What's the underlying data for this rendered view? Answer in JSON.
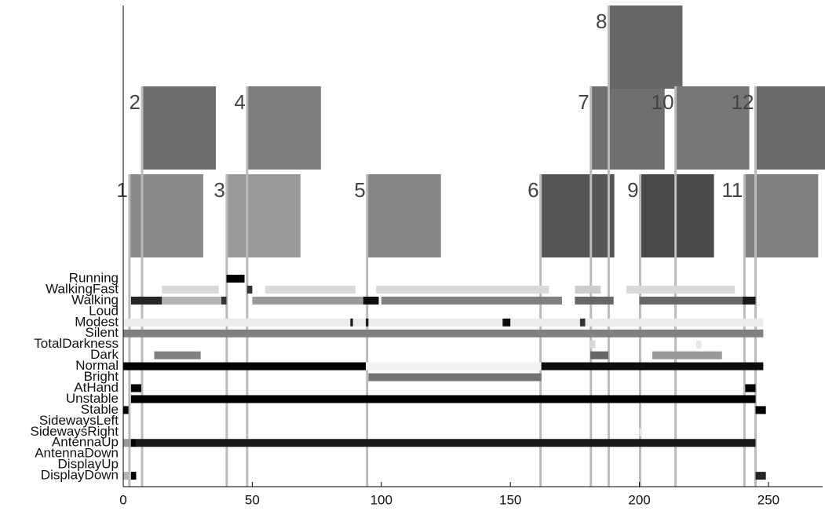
{
  "chart_data": {
    "type": "timeline",
    "xlim": [
      0,
      271
    ],
    "xticks": [
      0,
      50,
      100,
      150,
      200,
      250
    ],
    "rows": [
      {
        "name": "Running",
        "segments": [
          [
            40,
            47,
            1
          ]
        ]
      },
      {
        "name": "WalkingFast",
        "segments": [
          [
            15,
            37,
            0.15
          ],
          [
            48,
            50,
            0.8
          ],
          [
            55,
            90,
            0.15
          ],
          [
            98,
            165,
            0.15
          ],
          [
            175,
            185,
            0.2
          ],
          [
            195,
            237,
            0.15
          ]
        ]
      },
      {
        "name": "Walking",
        "segments": [
          [
            3,
            15,
            0.85
          ],
          [
            15,
            38,
            0.3
          ],
          [
            38,
            40,
            0.8
          ],
          [
            50,
            93,
            0.4
          ],
          [
            93,
            99,
            0.95
          ],
          [
            100,
            170,
            0.5
          ],
          [
            175,
            190,
            0.6
          ],
          [
            200,
            240,
            0.6
          ],
          [
            240,
            245,
            0.9
          ]
        ]
      },
      {
        "name": "Loud",
        "segments": []
      },
      {
        "name": "Modest",
        "segments": [
          [
            0,
            248,
            0.08
          ],
          [
            88,
            89,
            0.9
          ],
          [
            94,
            95,
            0.9
          ],
          [
            147,
            150,
            0.95
          ],
          [
            177,
            179,
            0.8
          ]
        ]
      },
      {
        "name": "Silent",
        "segments": [
          [
            0,
            248,
            0.5
          ]
        ]
      },
      {
        "name": "TotalDarkness",
        "segments": [
          [
            181,
            183,
            0.15
          ],
          [
            222,
            224,
            0.1
          ]
        ]
      },
      {
        "name": "Dark",
        "segments": [
          [
            12,
            30,
            0.5
          ],
          [
            181,
            188,
            0.6
          ],
          [
            205,
            232,
            0.4
          ]
        ]
      },
      {
        "name": "Normal",
        "segments": [
          [
            0,
            94,
            1
          ],
          [
            94,
            162,
            0.05
          ],
          [
            162,
            248,
            0.95
          ]
        ]
      },
      {
        "name": "Bright",
        "segments": [
          [
            95,
            162,
            0.55
          ]
        ]
      },
      {
        "name": "AtHand",
        "segments": [
          [
            3,
            7,
            1
          ],
          [
            241,
            245,
            1
          ]
        ]
      },
      {
        "name": "Unstable",
        "segments": [
          [
            3,
            245,
            1
          ]
        ]
      },
      {
        "name": "Stable",
        "segments": [
          [
            0,
            2,
            1
          ],
          [
            245,
            249,
            1
          ]
        ]
      },
      {
        "name": "SidewaysLeft",
        "segments": []
      },
      {
        "name": "SidewaysRight",
        "segments": [
          [
            200,
            201,
            0.1
          ]
        ]
      },
      {
        "name": "AntennaUp",
        "segments": [
          [
            0,
            3,
            0.4
          ],
          [
            3,
            5,
            1
          ],
          [
            5,
            245,
            0.9
          ]
        ]
      },
      {
        "name": "AntennaDown",
        "segments": []
      },
      {
        "name": "DisplayUp",
        "segments": []
      },
      {
        "name": "DisplayDown",
        "segments": [
          [
            0,
            2,
            0.3
          ],
          [
            3,
            5,
            1
          ],
          [
            245,
            249,
            0.85
          ]
        ]
      }
    ],
    "markers": [
      {
        "label": "1",
        "x": 2.4
      },
      {
        "label": "2",
        "x": 7.3
      },
      {
        "label": "3",
        "x": 40.1
      },
      {
        "label": "4",
        "x": 48
      },
      {
        "label": "5",
        "x": 94.5
      },
      {
        "label": "6",
        "x": 161.7
      },
      {
        "label": "7",
        "x": 181.2
      },
      {
        "label": "8",
        "x": 188.1
      },
      {
        "label": "9",
        "x": 200.3
      },
      {
        "label": "10",
        "x": 214
      },
      {
        "label": "11",
        "x": 240.7
      },
      {
        "label": "12",
        "x": 245
      }
    ]
  }
}
